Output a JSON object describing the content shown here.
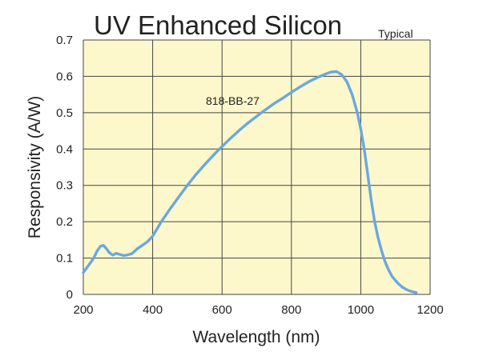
{
  "chart_data": {
    "type": "line",
    "title": "UV Enhanced Silicon",
    "subtitle": "Typical",
    "xlabel": "Wavelength (nm)",
    "ylabel": "Responsivity (A/W)",
    "xlim": [
      200,
      1200
    ],
    "ylim": [
      0,
      0.7
    ],
    "xticks": [
      200,
      400,
      600,
      800,
      1000,
      1200
    ],
    "xtick_labels": [
      "200",
      "400",
      "600",
      "800",
      "1000",
      "1200"
    ],
    "yticks": [
      0,
      0.1,
      0.2,
      0.3,
      0.4,
      0.5,
      0.6,
      0.7
    ],
    "ytick_labels": [
      "0",
      "0.1",
      "0.2",
      "0.3",
      "0.4",
      "0.5",
      "0.6",
      "0.7"
    ],
    "grid": true,
    "annotation": "818-BB-27",
    "series": [
      {
        "name": "818-BB-27",
        "x": [
          200,
          215,
          230,
          240,
          250,
          258,
          265,
          275,
          285,
          295,
          305,
          315,
          325,
          340,
          355,
          370,
          385,
          400,
          425,
          450,
          475,
          500,
          525,
          550,
          575,
          600,
          625,
          650,
          675,
          700,
          725,
          750,
          775,
          800,
          825,
          850,
          875,
          900,
          915,
          930,
          945,
          960,
          975,
          990,
          1000,
          1010,
          1020,
          1030,
          1040,
          1050,
          1060,
          1070,
          1080,
          1090,
          1100,
          1110,
          1120,
          1130,
          1140,
          1150,
          1160
        ],
        "y": [
          0.06,
          0.08,
          0.1,
          0.12,
          0.133,
          0.135,
          0.128,
          0.115,
          0.108,
          0.113,
          0.11,
          0.107,
          0.108,
          0.112,
          0.125,
          0.135,
          0.145,
          0.16,
          0.2,
          0.235,
          0.268,
          0.3,
          0.33,
          0.357,
          0.383,
          0.407,
          0.43,
          0.452,
          0.472,
          0.49,
          0.508,
          0.525,
          0.54,
          0.556,
          0.571,
          0.585,
          0.597,
          0.607,
          0.612,
          0.613,
          0.605,
          0.585,
          0.55,
          0.5,
          0.455,
          0.4,
          0.33,
          0.26,
          0.2,
          0.155,
          0.12,
          0.09,
          0.068,
          0.05,
          0.038,
          0.028,
          0.02,
          0.014,
          0.01,
          0.007,
          0.005
        ]
      }
    ],
    "colors": {
      "plot_background": "#fdf8cb",
      "grid": "#444444",
      "line": "#6aa8de"
    }
  }
}
